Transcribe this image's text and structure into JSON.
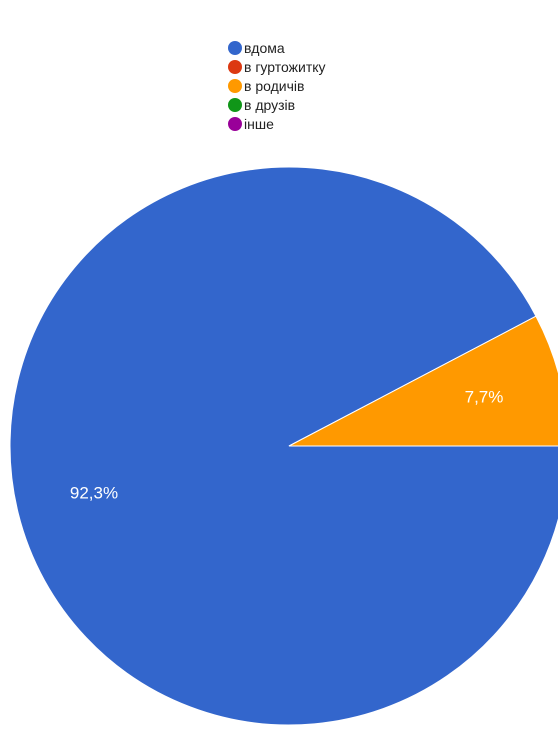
{
  "chart_data": {
    "type": "pie",
    "legend_position": "top",
    "categories": [
      "вдома",
      "в гуртожитку",
      "в родичів",
      "в друзів",
      "інше"
    ],
    "values": [
      92.3,
      0,
      7.7,
      0,
      0
    ],
    "data_labels": [
      "92,3%",
      "",
      "7,7%",
      "",
      ""
    ],
    "colors": [
      "#3366cc",
      "#dc3912",
      "#ff9900",
      "#109618",
      "#990099"
    ],
    "label_color": "#ffffff"
  }
}
